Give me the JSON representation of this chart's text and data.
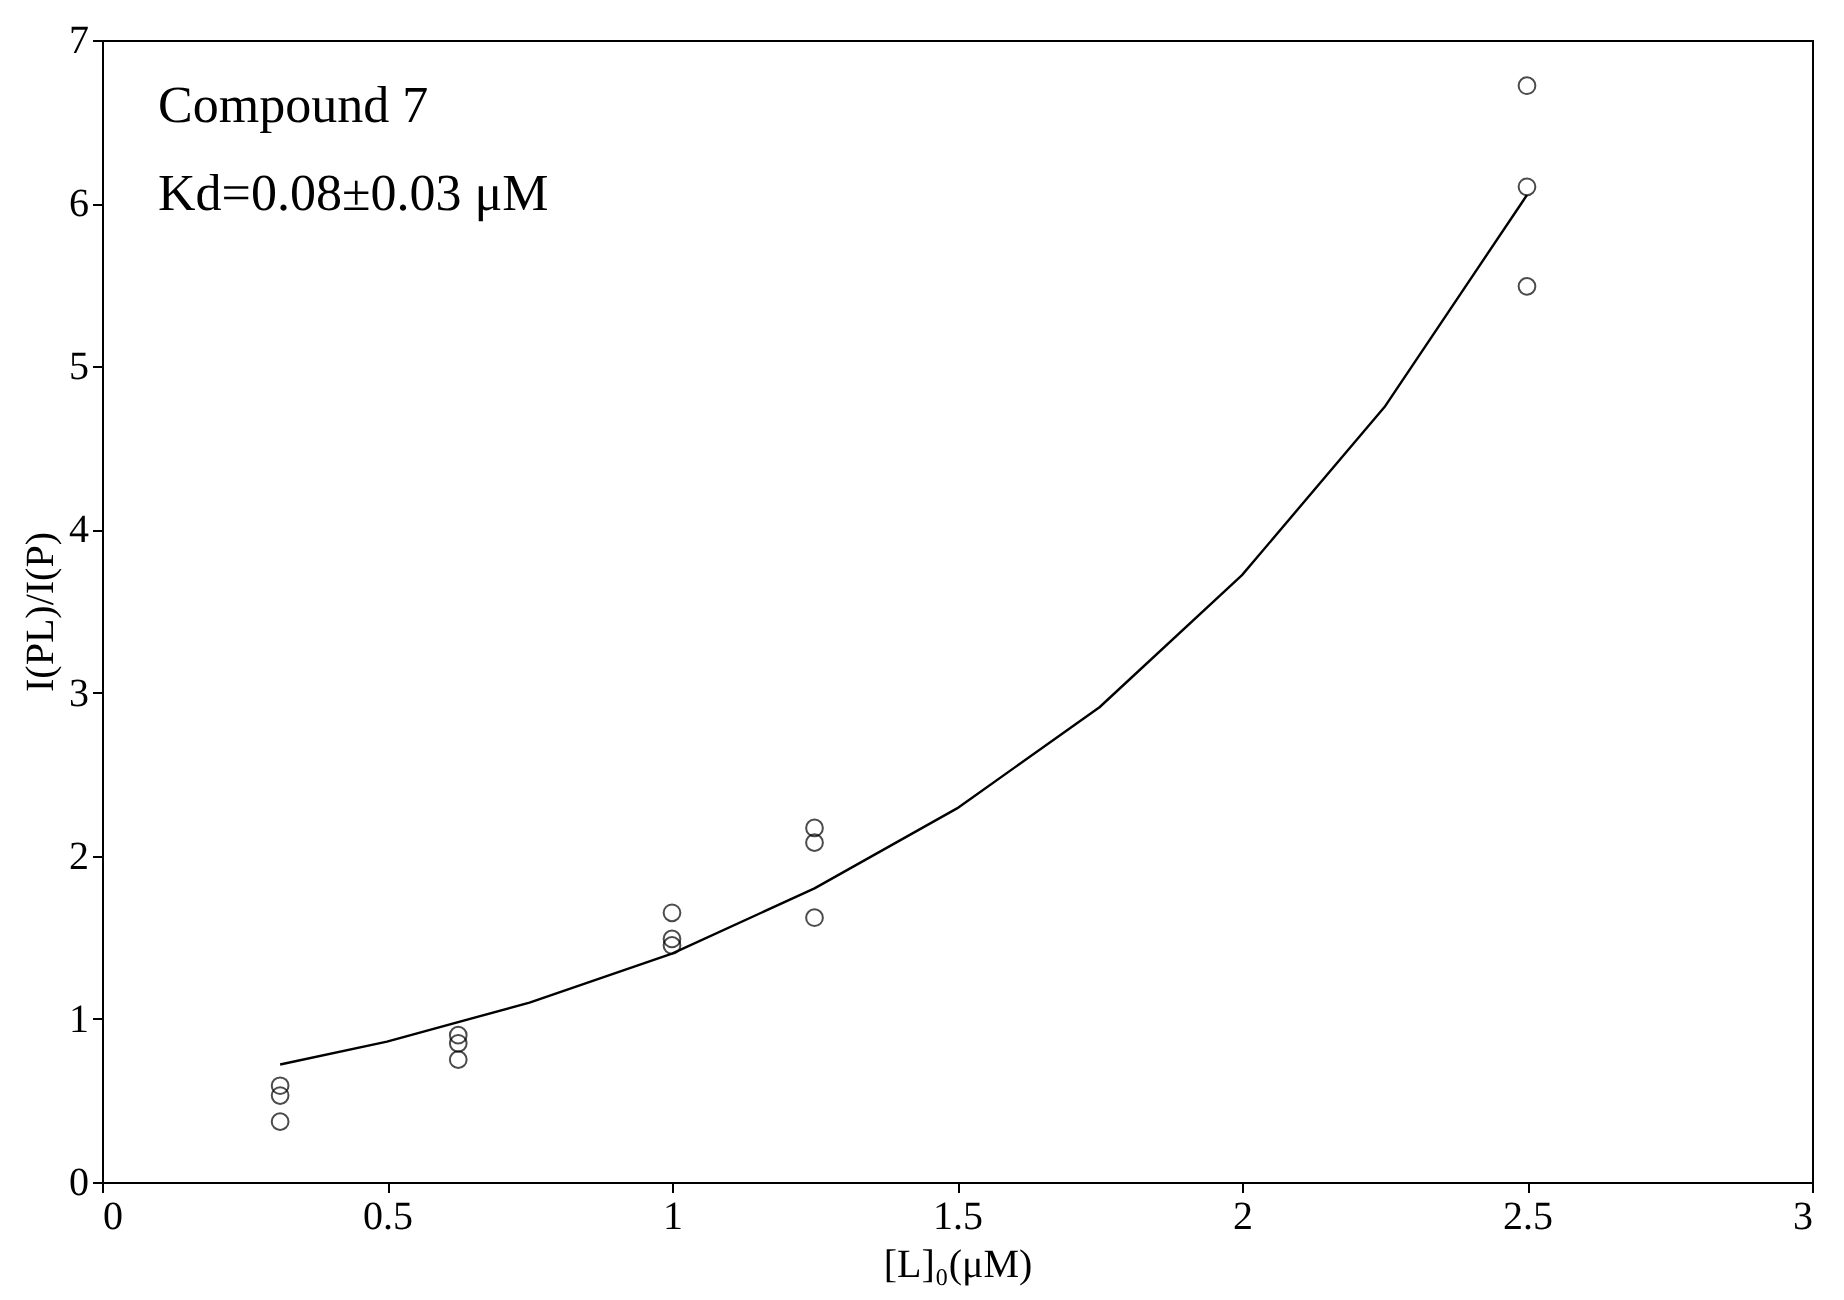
{
  "chart_data": {
    "type": "scatter",
    "xlabel": "[L]₀(μM)",
    "ylabel": "I(PL)/I(P)",
    "xlim": [
      0,
      3
    ],
    "ylim": [
      0,
      7
    ],
    "xticks": [
      0,
      0.5,
      1,
      1.5,
      2,
      2.5,
      3
    ],
    "yticks": [
      0,
      1,
      2,
      3,
      4,
      5,
      6,
      7
    ],
    "grid": false,
    "marker": "circle",
    "annotations": [
      "Compound 7",
      "Kd=0.08±0.03 μM"
    ],
    "series": [
      {
        "color": "#000000",
        "x": [
          0.3125,
          0.3125,
          0.3125,
          0.625,
          0.625,
          0.625,
          1,
          1,
          1,
          1.25,
          1.25,
          1.25,
          2.5,
          2.5,
          2.5
        ],
        "values": [
          0.59,
          0.53,
          0.37,
          0.9,
          0.85,
          0.75,
          1.65,
          1.49,
          1.45,
          2.17,
          2.08,
          1.62,
          6.72,
          6.1,
          5.49
        ]
      },
      {
        "type": "line",
        "color": "#000000",
        "line_style": "solid",
        "marker": "none",
        "x": [
          0.3125,
          0.5,
          0.75,
          1,
          1.25,
          1.5,
          1.75,
          2,
          2.25,
          2.5
        ],
        "values": [
          0.72,
          0.86,
          1.1,
          1.4,
          1.8,
          2.29,
          2.91,
          3.72,
          4.75,
          6.05
        ]
      }
    ]
  }
}
